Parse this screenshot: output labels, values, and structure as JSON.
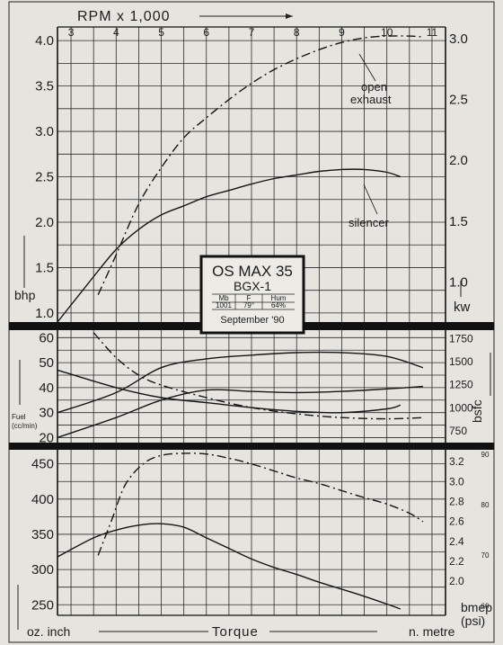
{
  "chart_data": [
    {
      "type": "line",
      "panel": "power",
      "x_axis": {
        "label": "RPM x 1,000",
        "range": [
          2.7,
          11.3
        ],
        "ticks": [
          "3",
          "4",
          "5",
          "6",
          "7",
          "8",
          "9",
          "10",
          "11"
        ]
      },
      "y_left": {
        "label": "bhp",
        "range": [
          0.9,
          4.15
        ],
        "ticks": [
          "1.0",
          "1.5",
          "2.0",
          "2.5",
          "3.0",
          "3.5",
          "4.0"
        ]
      },
      "y_right": {
        "label": "kw",
        "ticks": [
          "1.0",
          "1.5",
          "2.0",
          "2.5",
          "3.0"
        ]
      },
      "grid": true,
      "series": [
        {
          "name": "open exhaust",
          "style": "dash-dot",
          "x": [
            3.6,
            4.0,
            4.5,
            5.0,
            5.5,
            6.0,
            6.5,
            7.0,
            7.5,
            8.0,
            8.5,
            9.0,
            9.5,
            10.0,
            10.5,
            10.8
          ],
          "y": [
            1.2,
            1.64,
            2.2,
            2.6,
            2.93,
            3.15,
            3.35,
            3.53,
            3.68,
            3.8,
            3.9,
            3.98,
            4.03,
            4.05,
            4.05,
            4.04
          ]
        },
        {
          "name": "silencer",
          "style": "solid",
          "x": [
            2.7,
            3.5,
            4.0,
            4.5,
            5.0,
            5.5,
            6.0,
            6.5,
            7.0,
            7.5,
            8.0,
            8.5,
            9.0,
            9.5,
            10.0,
            10.3
          ],
          "y": [
            0.9,
            1.4,
            1.7,
            1.92,
            2.08,
            2.18,
            2.28,
            2.35,
            2.42,
            2.48,
            2.52,
            2.56,
            2.58,
            2.58,
            2.55,
            2.5
          ]
        }
      ],
      "annotations": [
        "open exhaust",
        "silencer"
      ]
    },
    {
      "type": "line",
      "panel": "fuel",
      "y_left": {
        "label": "Fuel (cc/min)",
        "range": [
          18,
          63
        ],
        "ticks": [
          "20",
          "30",
          "40",
          "50",
          "60"
        ]
      },
      "y_right": {
        "label": "bsfc",
        "ticks": [
          "750",
          "1000",
          "1250",
          "1500",
          "1750"
        ]
      },
      "grid": true,
      "series": [
        {
          "name": "fuel open exhaust",
          "style": "solid",
          "x": [
            2.7,
            4,
            5,
            6,
            7,
            8,
            9,
            10,
            10.8
          ],
          "y": [
            30,
            38,
            48,
            51.5,
            53,
            54,
            54,
            52.5,
            48
          ]
        },
        {
          "name": "fuel silencer",
          "style": "solid",
          "x": [
            2.7,
            4,
            5,
            6,
            7,
            8,
            9,
            10,
            10.8
          ],
          "y": [
            20,
            28,
            35,
            39,
            38.5,
            38,
            38.5,
            39.5,
            40.5
          ]
        },
        {
          "name": "bsfc open exhaust",
          "style": "dash-dot",
          "x": [
            3.5,
            4.0,
            4.5,
            5,
            6,
            7,
            8,
            9,
            10,
            10.8
          ],
          "y": [
            62,
            52,
            45,
            41,
            36,
            32,
            29.5,
            28,
            27.5,
            28
          ]
        },
        {
          "name": "bsfc silencer",
          "style": "solid",
          "x": [
            2.7,
            4,
            5,
            6,
            7,
            8,
            9,
            10,
            10.3
          ],
          "y": [
            47,
            40,
            36,
            34,
            32,
            30.5,
            30,
            31.5,
            33
          ]
        }
      ]
    },
    {
      "type": "line",
      "panel": "torque",
      "x_label": "Torque",
      "y_left": {
        "label": "oz. inch",
        "range": [
          235,
          470
        ],
        "ticks": [
          "250",
          "300",
          "350",
          "400",
          "450"
        ]
      },
      "y_right_1": {
        "label": "n. metre",
        "ticks": [
          "2.0",
          "2.2",
          "2.4",
          "2.6",
          "2.8",
          "3.0",
          "3.2"
        ]
      },
      "y_right_2": {
        "label": "bmep (psi)",
        "ticks": [
          "60",
          "70",
          "80",
          "90"
        ]
      },
      "grid": true,
      "series": [
        {
          "name": "torque open exhaust",
          "style": "dash-dot",
          "x": [
            3.6,
            3.9,
            4.2,
            4.6,
            5.0,
            5.5,
            6.0,
            6.5,
            7.0,
            7.5,
            8.0,
            8.5,
            9.0,
            9.5,
            10.0,
            10.5,
            10.8
          ],
          "y": [
            320,
            370,
            420,
            450,
            462,
            465,
            464,
            458,
            450,
            440,
            430,
            422,
            412,
            402,
            393,
            380,
            368
          ]
        },
        {
          "name": "torque silencer",
          "style": "solid",
          "x": [
            2.7,
            3.5,
            4.0,
            4.5,
            5.0,
            5.5,
            6.0,
            6.5,
            7.0,
            7.5,
            8.0,
            8.5,
            9.0,
            9.5,
            10.0,
            10.3
          ],
          "y": [
            318,
            345,
            356,
            363,
            365,
            360,
            345,
            330,
            315,
            303,
            293,
            282,
            272,
            262,
            251,
            244
          ]
        }
      ]
    }
  ],
  "title_box": {
    "line1": "OS MAX 35",
    "line2": "BGX-1",
    "h1": "Mb",
    "h2": "F",
    "h3": "Hum",
    "v1": "1001",
    "v2": "79°",
    "v3": "64%",
    "date": "September '90"
  },
  "labels": {
    "rpm": "RPM x 1,000",
    "bhp": "bhp",
    "kw": "kw",
    "fuel1": "Fuel",
    "fuel2": "(cc/min)",
    "bsfc": "bsfc",
    "oz": "oz. inch",
    "torque": "Torque",
    "nm": "n. metre",
    "bmep1": "bmep",
    "bmep2": "(psi)",
    "open1": "open",
    "open2": "exhaust",
    "silencer": "silencer"
  }
}
